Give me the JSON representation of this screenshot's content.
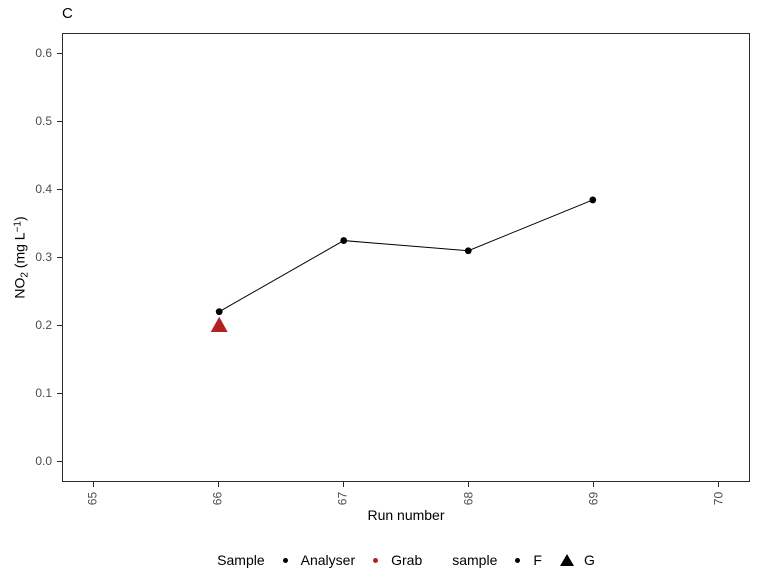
{
  "panel_label": "C",
  "axes": {
    "y_title": {
      "pre": "NO",
      "sub": "2",
      "mid": " (mg L",
      "sup": "−1",
      "post": ")"
    },
    "x_title": "Run number",
    "y_ticks": [
      "0.0",
      "0.1",
      "0.2",
      "0.3",
      "0.4",
      "0.5",
      "0.6"
    ],
    "x_ticks": [
      "65",
      "66",
      "67",
      "68",
      "69",
      "70"
    ]
  },
  "legend": {
    "groups": [
      {
        "title": "Sample",
        "items": [
          {
            "label": "Analyser",
            "marker": "dot",
            "color": "#000000"
          },
          {
            "label": "Grab",
            "marker": "dot",
            "color": "#B22222"
          }
        ]
      },
      {
        "title": "sample",
        "items": [
          {
            "label": "F",
            "marker": "dot",
            "color": "#000000"
          },
          {
            "label": "G",
            "marker": "triangle",
            "color": "#000000"
          }
        ]
      }
    ]
  },
  "colors": {
    "analyser_black": "#000000",
    "grab_red": "#B22222",
    "axis_text": "#4d4d4d",
    "panel_border": "#2b2b2b",
    "background": "#ffffff"
  },
  "chart_data": {
    "type": "scatter",
    "title": "C",
    "xlabel": "Run number",
    "ylabel": "NO2 (mg L^-1)",
    "xlim": [
      65,
      70
    ],
    "ylim": [
      0,
      0.6
    ],
    "x_domain": [
      64.75,
      70.25
    ],
    "y_domain": [
      -0.03,
      0.63
    ],
    "grid": false,
    "legend_position": "bottom",
    "series": [
      {
        "name": "Analyser F",
        "marker": "circle",
        "color": "#000000",
        "line": true,
        "points": [
          {
            "x": 66,
            "y": 0.22
          },
          {
            "x": 67,
            "y": 0.325
          },
          {
            "x": 68,
            "y": 0.31
          },
          {
            "x": 69,
            "y": 0.385
          }
        ]
      },
      {
        "name": "Grab G",
        "marker": "triangle",
        "color": "#B22222",
        "line": false,
        "points": [
          {
            "x": 66,
            "y": 0.2
          }
        ]
      }
    ]
  }
}
